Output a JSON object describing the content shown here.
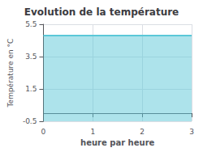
{
  "chart_data": {
    "type": "area",
    "title": "Evolution de la température",
    "x": [
      0,
      3
    ],
    "values": [
      4.8,
      4.8
    ],
    "xlabel": "heure par heure",
    "ylabel": "Température en °C",
    "xlim": [
      0,
      3
    ],
    "ylim": [
      -0.5,
      5.5
    ],
    "xticks": [
      0,
      1,
      2,
      3
    ],
    "yticks": [
      -0.5,
      1.5,
      3.5,
      5.5
    ],
    "grid": true,
    "color": "#5bc8d8"
  }
}
